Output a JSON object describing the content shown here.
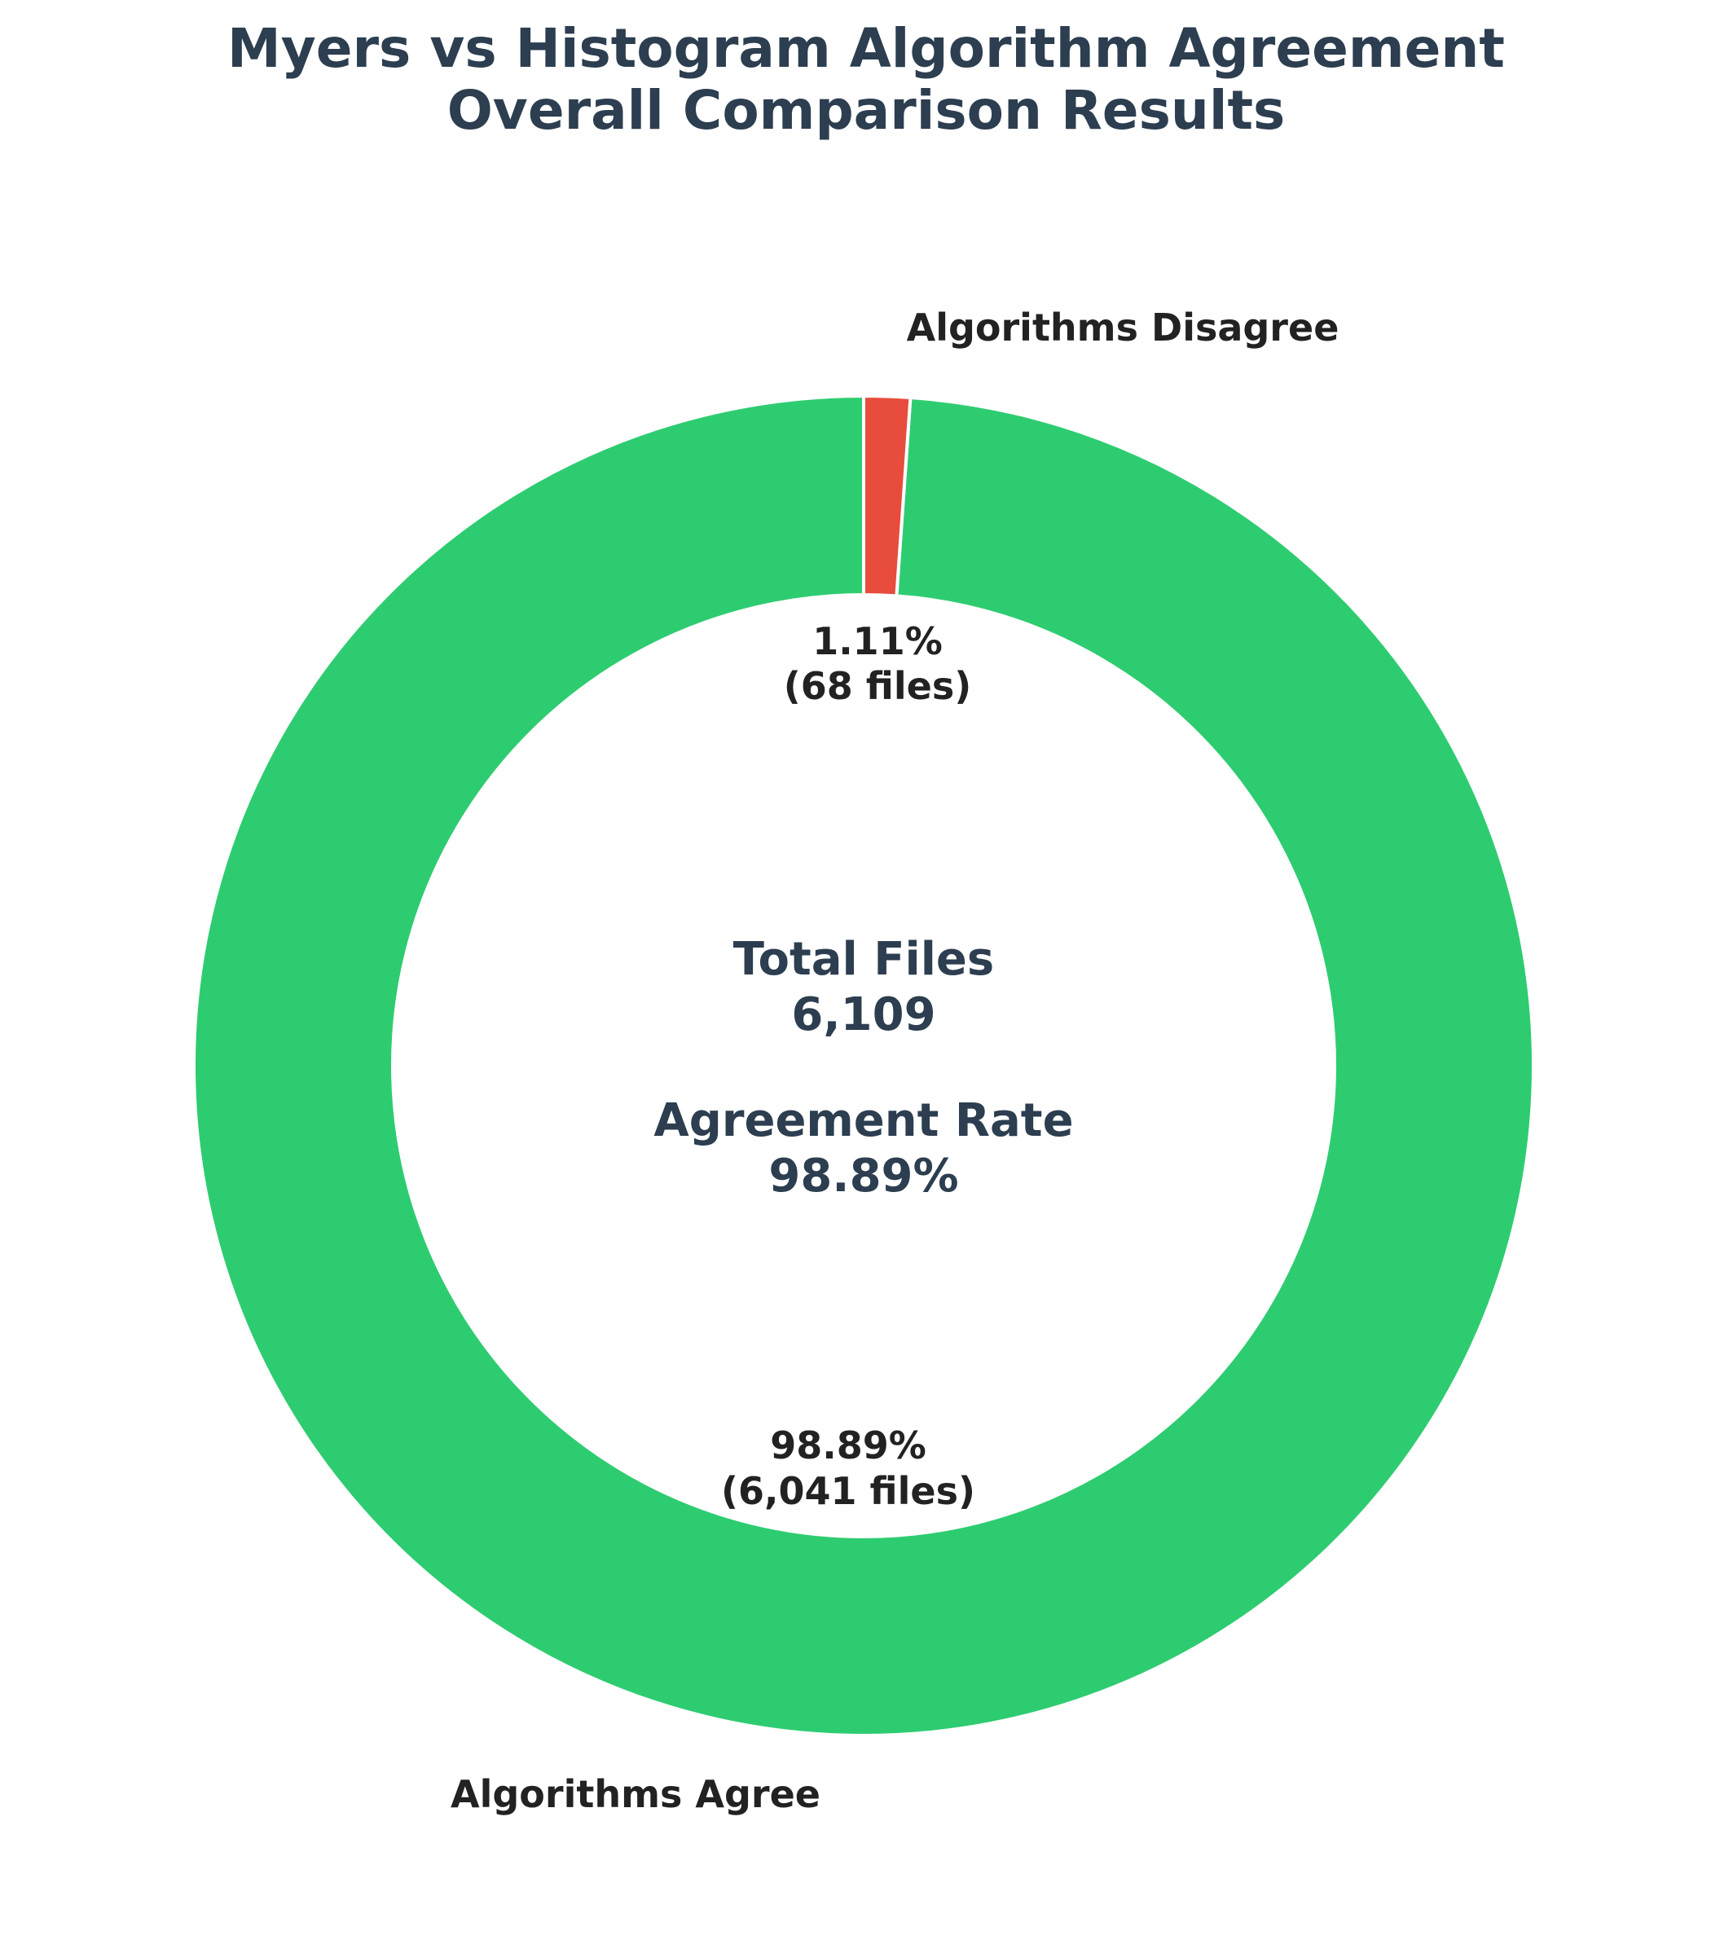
{
  "chart_data": {
    "type": "pie",
    "title_lines": [
      "Myers vs Histogram Algorithm Agreement",
      "Overall Comparison Results"
    ],
    "slices": [
      {
        "name": "Algorithms Agree",
        "value": 6041,
        "pct_label": "98.89%",
        "count_label": "(6,041 files)",
        "color": "#2ecc71"
      },
      {
        "name": "Algorithms Disagree",
        "value": 68,
        "pct_label": "1.11%",
        "count_label": "(68 files)",
        "color": "#e74c3c"
      }
    ],
    "center": {
      "total_label": "Total Files",
      "total_value": "6,109",
      "rate_label": "Agreement Rate",
      "rate_value": "98.89%"
    },
    "donut": true,
    "start_angle_deg": 90,
    "direction": "counterclockwise",
    "legend": "none"
  },
  "colors": {
    "title": "#2c3e50",
    "labels": "#222222",
    "slice_edge": "#ffffff"
  }
}
